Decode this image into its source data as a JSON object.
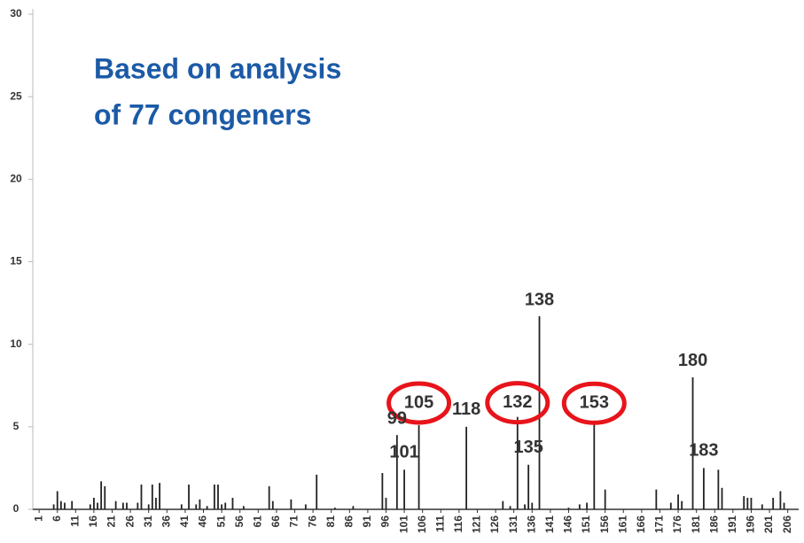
{
  "chart_data": {
    "type": "bar",
    "headline": [
      "Based on analysis",
      "of 77 congeners"
    ],
    "x": [
      5,
      6,
      7,
      8,
      10,
      15,
      16,
      17,
      18,
      19,
      22,
      24,
      25,
      28,
      29,
      31,
      32,
      33,
      34,
      40,
      42,
      44,
      45,
      47,
      49,
      50,
      51,
      52,
      54,
      57,
      64,
      65,
      70,
      74,
      77,
      82,
      87,
      95,
      96,
      99,
      101,
      105,
      118,
      128,
      130,
      132,
      134,
      135,
      136,
      138,
      146,
      149,
      151,
      153,
      156,
      170,
      174,
      176,
      177,
      180,
      183,
      187,
      188,
      194,
      195,
      196,
      199,
      202,
      204,
      205
    ],
    "values": [
      0.3,
      1.1,
      0.5,
      0.4,
      0.5,
      0.3,
      0.7,
      0.4,
      1.7,
      1.4,
      0.5,
      0.4,
      0.4,
      0.4,
      1.5,
      0.3,
      1.5,
      0.7,
      1.6,
      0.3,
      1.5,
      0.3,
      0.6,
      0.2,
      1.5,
      1.5,
      0.3,
      0.4,
      0.7,
      0.2,
      1.4,
      0.5,
      0.6,
      0.3,
      2.1,
      0.1,
      0.2,
      2.2,
      0.7,
      4.5,
      2.4,
      5.1,
      5.0,
      0.5,
      0.2,
      5.6,
      0.3,
      2.7,
      0.4,
      11.7,
      0.1,
      0.3,
      0.4,
      5.3,
      1.2,
      1.2,
      0.4,
      0.9,
      0.5,
      8.0,
      2.5,
      2.4,
      1.3,
      0.8,
      0.7,
      0.7,
      0.3,
      0.7,
      1.1,
      0.4
    ],
    "color": "#222222",
    "xlim": [
      0,
      209
    ],
    "xticks": [
      1,
      6,
      11,
      16,
      21,
      26,
      31,
      36,
      41,
      46,
      51,
      56,
      61,
      66,
      71,
      76,
      81,
      86,
      91,
      96,
      101,
      106,
      111,
      116,
      121,
      126,
      131,
      136,
      141,
      146,
      151,
      156,
      161,
      166,
      171,
      176,
      181,
      186,
      191,
      196,
      201,
      206
    ],
    "ylim": [
      0,
      30
    ],
    "yticks": [
      0,
      5,
      10,
      15,
      20,
      25,
      30
    ],
    "annotations": [
      {
        "label": "138",
        "x": 138,
        "circled": false
      },
      {
        "label": "180",
        "x": 180,
        "circled": false
      },
      {
        "label": "105",
        "x": 105,
        "circled": true
      },
      {
        "label": "132",
        "x": 132,
        "circled": true
      },
      {
        "label": "153",
        "x": 153,
        "circled": true
      },
      {
        "label": "118",
        "x": 118,
        "circled": false
      },
      {
        "label": "99",
        "x": 99,
        "circled": false
      },
      {
        "label": "101",
        "x": 101,
        "circled": false
      },
      {
        "label": "135",
        "x": 135,
        "circled": false
      },
      {
        "label": "183",
        "x": 183,
        "circled": false
      }
    ],
    "circle_color": "#e8141b",
    "headline_color": "#1b5aa6"
  }
}
